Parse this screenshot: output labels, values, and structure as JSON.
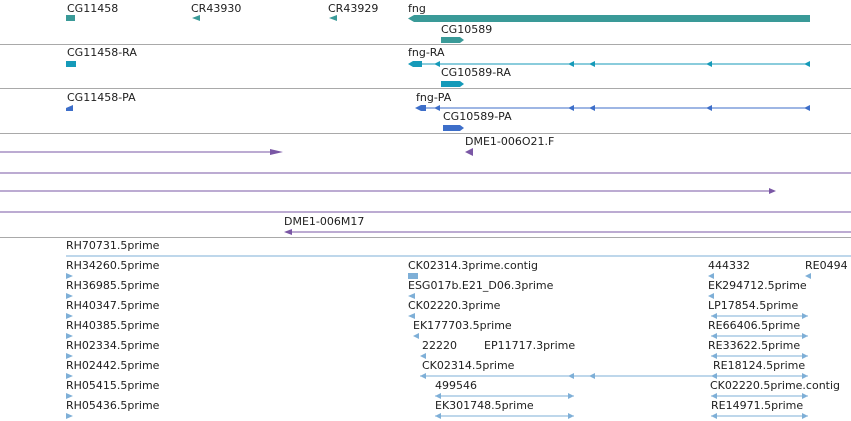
{
  "colors": {
    "gene": "#3a9a98",
    "transcript_ra": "#159ab9",
    "protein_pa": "#3d6ec9",
    "clone_end": "#7a57a5",
    "est": "#7eafd7",
    "separator": "#a9a9a9"
  },
  "gene_track": {
    "labels": [
      "CG11458",
      "CR43930",
      "CR43929",
      "fng",
      "CG10589"
    ]
  },
  "transcript_track": {
    "labels": [
      "CG11458-RA",
      "fng-RA",
      "CG10589-RA"
    ]
  },
  "protein_track": {
    "labels": [
      "CG11458-PA",
      "fng-PA",
      "CG10589-PA"
    ]
  },
  "clone_track": {
    "labels": [
      "DME1-006O21.F",
      "DME1-006M17"
    ]
  },
  "est_track": {
    "labels": [
      "RH70731.5prime",
      "RH34260.5prime",
      "CK02314.3prime.contig",
      "444332",
      "RE0494",
      "RH36985.5prime",
      "ESG017b.E21_D06.3prime",
      "EK294712.5prime",
      "RH40347.5prime",
      "CK02220.3prime",
      "LP17854.5prime",
      "RH40385.5prime",
      "EK177703.5prime",
      "RE66406.5prime",
      "RH02334.5prime",
      "22220",
      "EP11717.3prime",
      "RE33622.5prime",
      "RH02442.5prime",
      "CK02314.5prime",
      "RE18124.5prime",
      "RH05415.5prime",
      "499546",
      "CK02220.5prime.contig",
      "RH05436.5prime",
      "EK301748.5prime",
      "RE14971.5prime"
    ]
  }
}
